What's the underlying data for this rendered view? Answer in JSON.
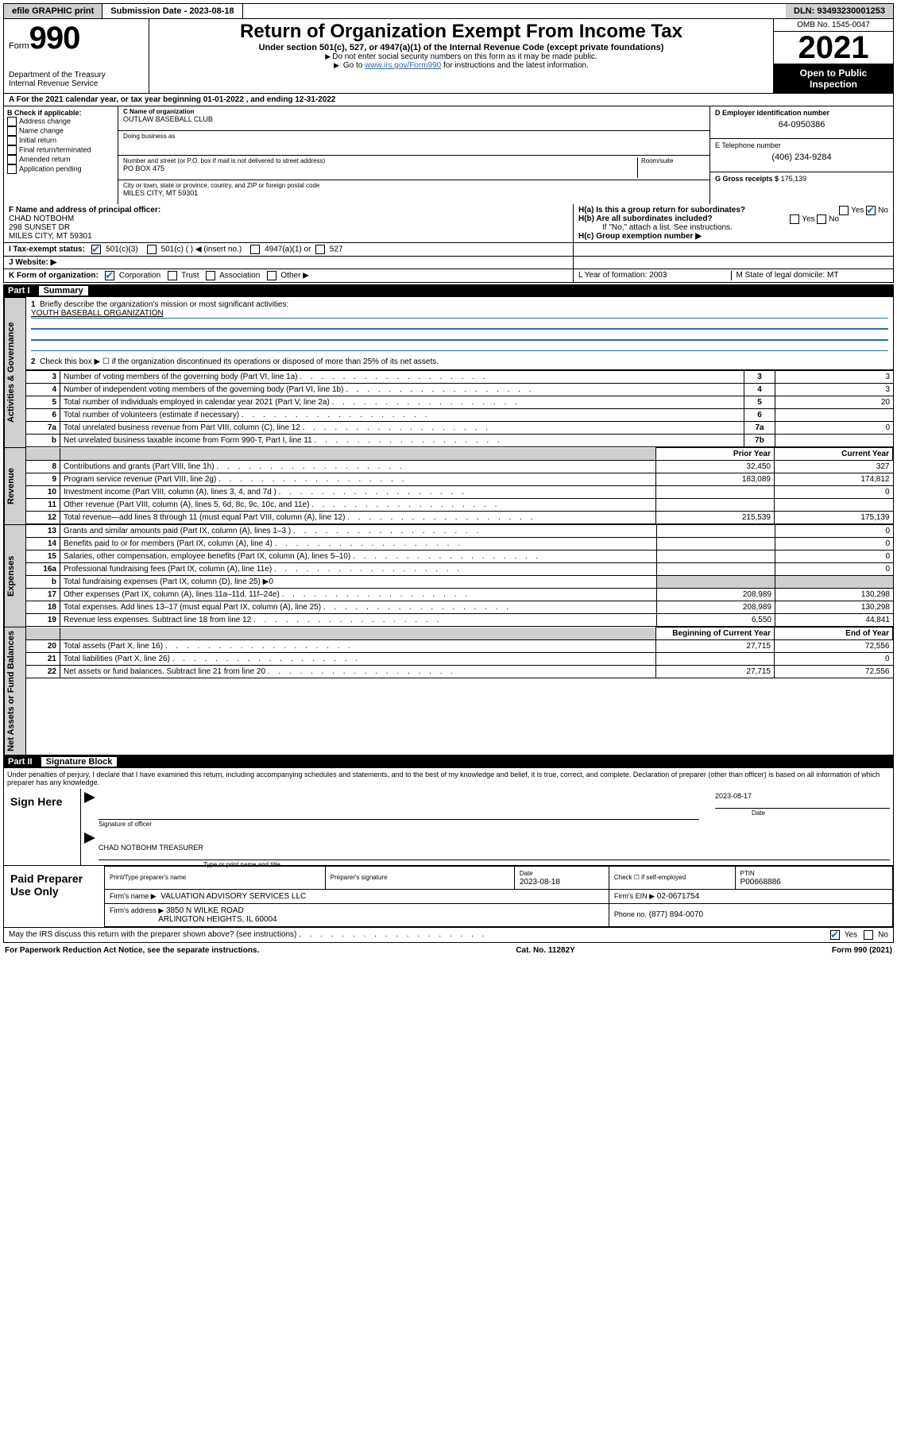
{
  "topbar": {
    "efile": "efile GRAPHIC print",
    "submission_label": "Submission Date - 2023-08-18",
    "dln": "DLN: 93493230001253"
  },
  "header": {
    "form_prefix": "Form",
    "form_number": "990",
    "dept": "Department of the Treasury",
    "irs": "Internal Revenue Service",
    "title": "Return of Organization Exempt From Income Tax",
    "subtitle": "Under section 501(c), 527, or 4947(a)(1) of the Internal Revenue Code (except private foundations)",
    "note1": "Do not enter social security numbers on this form as it may be made public.",
    "note2_pre": "Go to ",
    "note2_link": "www.irs.gov/Form990",
    "note2_post": " for instructions and the latest information.",
    "omb": "OMB No. 1545-0047",
    "year": "2021",
    "open_public": "Open to Public Inspection"
  },
  "row_a": "A For the 2021 calendar year, or tax year beginning 01-01-2022   , and ending 12-31-2022",
  "col_b": {
    "hdr": "B Check if applicable:",
    "items": [
      "Address change",
      "Name change",
      "Initial return",
      "Final return/terminated",
      "Amended return",
      "Application pending"
    ]
  },
  "col_c": {
    "name_lbl": "C Name of organization",
    "name": "OUTLAW BASEBALL CLUB",
    "dba_lbl": "Doing business as",
    "addr_lbl": "Number and street (or P.O. box if mail is not delivered to street address)",
    "room_lbl": "Room/suite",
    "addr": "PO BOX 475",
    "city_lbl": "City or town, state or province, country, and ZIP or foreign postal code",
    "city": "MILES CITY, MT  59301"
  },
  "col_d": {
    "d_lbl": "D Employer identification number",
    "ein": "64-0950386",
    "e_lbl": "E Telephone number",
    "phone": "(406) 234-9284",
    "g_lbl": "G Gross receipts $",
    "gross": "175,139"
  },
  "row_f": {
    "f_lbl": "F Name and address of principal officer:",
    "f_name": "CHAD NOTBOHM",
    "f_addr1": "298 SUNSET DR",
    "f_addr2": "MILES CITY, MT  59301",
    "h_a": "H(a)  Is this a group return for subordinates?",
    "h_b": "H(b)  Are all subordinates included?",
    "h_note": "If \"No,\" attach a list. See instructions.",
    "h_c": "H(c)  Group exemption number ▶",
    "yes": "Yes",
    "no": "No"
  },
  "row_i": {
    "lbl": "I   Tax-exempt status:",
    "opt1": "501(c)(3)",
    "opt2": "501(c) (  ) ◀ (insert no.)",
    "opt3": "4947(a)(1) or",
    "opt4": "527"
  },
  "row_j": {
    "lbl": "J   Website: ▶"
  },
  "row_k": {
    "lbl": "K Form of organization:",
    "opts": [
      "Corporation",
      "Trust",
      "Association",
      "Other ▶"
    ],
    "l_lbl": "L Year of formation: 2003",
    "m_lbl": "M State of legal domicile: MT"
  },
  "part1": {
    "hdr_label": "Part I",
    "hdr_title": "Summary",
    "line1_lbl": "Briefly describe the organization's mission or most significant activities:",
    "line1_val": "YOUTH BASEBALL ORGANIZATION",
    "line2": "Check this box ▶ ☐  if the organization discontinued its operations or disposed of more than 25% of its net assets.",
    "tab_gov": "Activities & Governance",
    "tab_rev": "Revenue",
    "tab_exp": "Expenses",
    "tab_net": "Net Assets or Fund Balances",
    "prior_hdr": "Prior Year",
    "curr_hdr": "Current Year",
    "boc_hdr": "Beginning of Current Year",
    "eoy_hdr": "End of Year",
    "gov_lines": [
      {
        "n": "3",
        "lbl": "Number of voting members of the governing body (Part VI, line 1a)",
        "box": "3",
        "val": "3"
      },
      {
        "n": "4",
        "lbl": "Number of independent voting members of the governing body (Part VI, line 1b)",
        "box": "4",
        "val": "3"
      },
      {
        "n": "5",
        "lbl": "Total number of individuals employed in calendar year 2021 (Part V, line 2a)",
        "box": "5",
        "val": "20"
      },
      {
        "n": "6",
        "lbl": "Total number of volunteers (estimate if necessary)",
        "box": "6",
        "val": ""
      },
      {
        "n": "7a",
        "lbl": "Total unrelated business revenue from Part VIII, column (C), line 12",
        "box": "7a",
        "val": "0"
      },
      {
        "n": "b",
        "lbl": "Net unrelated business taxable income from Form 990-T, Part I, line 11",
        "box": "7b",
        "val": ""
      }
    ],
    "rev_lines": [
      {
        "n": "8",
        "lbl": "Contributions and grants (Part VIII, line 1h)",
        "py": "32,450",
        "cy": "327"
      },
      {
        "n": "9",
        "lbl": "Program service revenue (Part VIII, line 2g)",
        "py": "183,089",
        "cy": "174,812"
      },
      {
        "n": "10",
        "lbl": "Investment income (Part VIII, column (A), lines 3, 4, and 7d )",
        "py": "",
        "cy": "0"
      },
      {
        "n": "11",
        "lbl": "Other revenue (Part VIII, column (A), lines 5, 6d, 8c, 9c, 10c, and 11e)",
        "py": "",
        "cy": ""
      },
      {
        "n": "12",
        "lbl": "Total revenue—add lines 8 through 11 (must equal Part VIII, column (A), line 12)",
        "py": "215,539",
        "cy": "175,139"
      }
    ],
    "exp_lines": [
      {
        "n": "13",
        "lbl": "Grants and similar amounts paid (Part IX, column (A), lines 1–3 )",
        "py": "",
        "cy": "0"
      },
      {
        "n": "14",
        "lbl": "Benefits paid to or for members (Part IX, column (A), line 4)",
        "py": "",
        "cy": "0"
      },
      {
        "n": "15",
        "lbl": "Salaries, other compensation, employee benefits (Part IX, column (A), lines 5–10)",
        "py": "",
        "cy": "0"
      },
      {
        "n": "16a",
        "lbl": "Professional fundraising fees (Part IX, column (A), line 11e)",
        "py": "",
        "cy": "0"
      },
      {
        "n": "b",
        "lbl": "Total fundraising expenses (Part IX, column (D), line 25) ▶0",
        "py": "(shade)",
        "cy": "(shade)"
      },
      {
        "n": "17",
        "lbl": "Other expenses (Part IX, column (A), lines 11a–11d, 11f–24e)",
        "py": "208,989",
        "cy": "130,298"
      },
      {
        "n": "18",
        "lbl": "Total expenses. Add lines 13–17 (must equal Part IX, column (A), line 25)",
        "py": "208,989",
        "cy": "130,298"
      },
      {
        "n": "19",
        "lbl": "Revenue less expenses. Subtract line 18 from line 12",
        "py": "6,550",
        "cy": "44,841"
      }
    ],
    "net_lines": [
      {
        "n": "20",
        "lbl": "Total assets (Part X, line 16)",
        "py": "27,715",
        "cy": "72,556"
      },
      {
        "n": "21",
        "lbl": "Total liabilities (Part X, line 26)",
        "py": "",
        "cy": "0"
      },
      {
        "n": "22",
        "lbl": "Net assets or fund balances. Subtract line 21 from line 20",
        "py": "27,715",
        "cy": "72,556"
      }
    ]
  },
  "part2": {
    "hdr_label": "Part II",
    "hdr_title": "Signature Block",
    "penalties": "Under penalties of perjury, I declare that I have examined this return, including accompanying schedules and statements, and to the best of my knowledge and belief, it is true, correct, and complete. Declaration of preparer (other than officer) is based on all information of which preparer has any knowledge.",
    "sign_here": "Sign Here",
    "sig_officer": "Signature of officer",
    "sig_date_lbl": "Date",
    "sig_date": "2023-08-17",
    "officer_name": "CHAD NOTBOHM  TREASURER",
    "officer_caption": "Type or print name and title",
    "paid_lbl": "Paid Preparer Use Only",
    "prep_name_lbl": "Print/Type preparer's name",
    "prep_sig_lbl": "Preparer's signature",
    "prep_date_lbl": "Date",
    "prep_date": "2023-08-18",
    "check_self": "Check ☐ if self-employed",
    "ptin_lbl": "PTIN",
    "ptin": "P00668886",
    "firm_name_lbl": "Firm's name   ▶",
    "firm_name": "VALUATION ADVISORY SERVICES LLC",
    "firm_ein_lbl": "Firm's EIN ▶",
    "firm_ein": "02-0671754",
    "firm_addr_lbl": "Firm's address ▶",
    "firm_addr1": "3850 N WILKE ROAD",
    "firm_addr2": "ARLINGTON HEIGHTS, IL  60004",
    "phone_lbl": "Phone no.",
    "phone": "(877) 894-0070",
    "may_irs": "May the IRS discuss this return with the preparer shown above? (see instructions)",
    "yes": "Yes",
    "no": "No"
  },
  "footer": {
    "left": "For Paperwork Reduction Act Notice, see the separate instructions.",
    "mid": "Cat. No. 11282Y",
    "right": "Form 990 (2021)"
  },
  "colors": {
    "link": "#2a6db0",
    "shade": "#cfcfcf",
    "black": "#000000",
    "white": "#ffffff"
  }
}
